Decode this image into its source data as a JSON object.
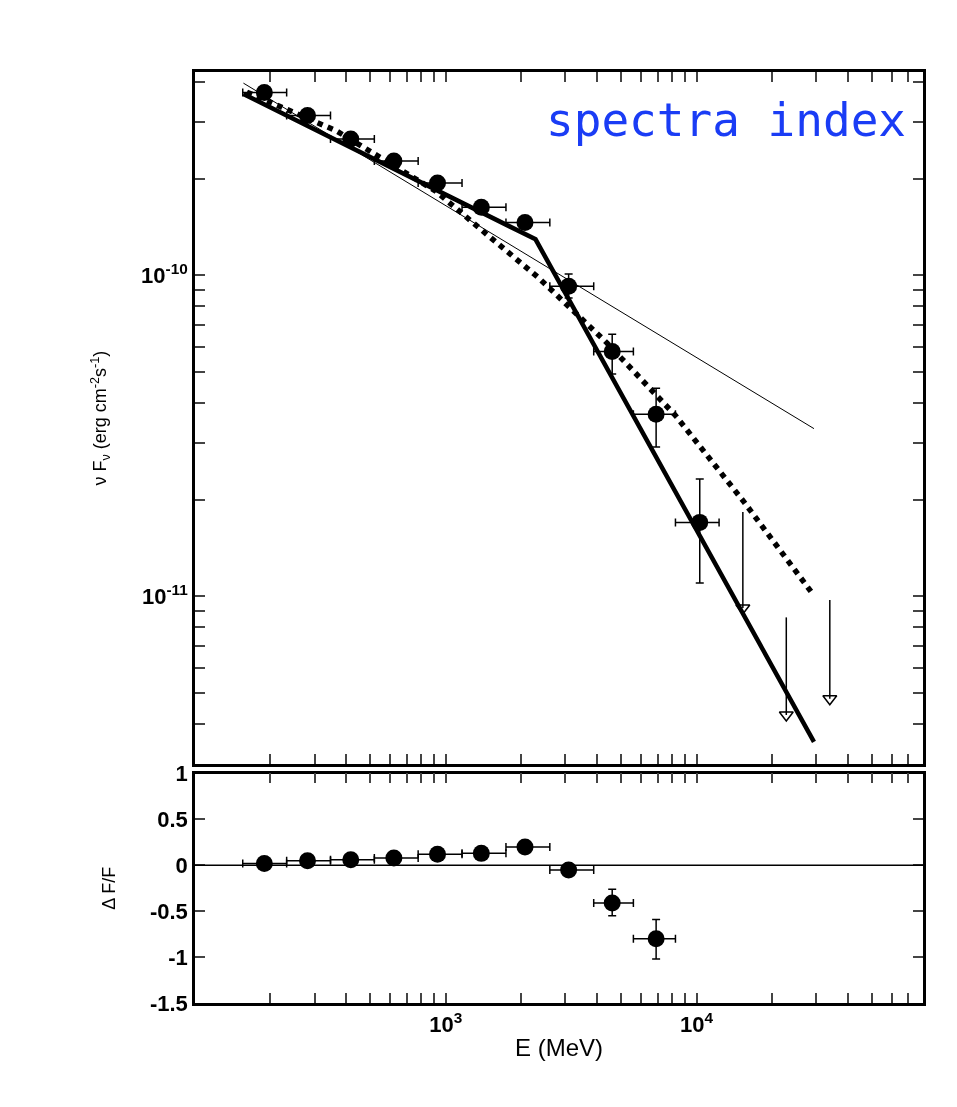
{
  "chart_data": [
    {
      "type": "scatter",
      "ylabel": "ν F$_{ν}$ (erg cm$^{-2}$s$^{-1}$)",
      "annotations": [
        "spectra index"
      ],
      "log": "xy",
      "tick_labels": "y",
      "xlim": [
        100,
        80000
      ],
      "ylim": [
        3e-12,
        4.3e-10
      ],
      "xticks": [
        {
          "value": 100,
          "label": null
        },
        {
          "value": 200,
          "label": null
        },
        {
          "value": 300,
          "label": null
        },
        {
          "value": 400,
          "label": null
        },
        {
          "value": 500,
          "label": null
        },
        {
          "value": 600,
          "label": null
        },
        {
          "value": 700,
          "label": null
        },
        {
          "value": 800,
          "label": null
        },
        {
          "value": 900,
          "label": null
        },
        {
          "value": 1000,
          "label": null
        },
        {
          "value": 2000,
          "label": null
        },
        {
          "value": 3000,
          "label": null
        },
        {
          "value": 4000,
          "label": null
        },
        {
          "value": 5000,
          "label": null
        },
        {
          "value": 6000,
          "label": null
        },
        {
          "value": 7000,
          "label": null
        },
        {
          "value": 8000,
          "label": null
        },
        {
          "value": 9000,
          "label": null
        },
        {
          "value": 10000,
          "label": null
        },
        {
          "value": 20000,
          "label": null
        },
        {
          "value": 30000,
          "label": null
        },
        {
          "value": 40000,
          "label": null
        },
        {
          "value": 50000,
          "label": null
        },
        {
          "value": 60000,
          "label": null
        },
        {
          "value": 70000,
          "label": null
        }
      ],
      "yticks": [
        {
          "value": 4e-10,
          "label": null
        },
        {
          "value": 3e-10,
          "label": null
        },
        {
          "value": 2e-10,
          "label": null
        },
        {
          "value": 1e-10,
          "label": "10$^{-10}$"
        },
        {
          "value": 9e-11,
          "label": null
        },
        {
          "value": 8e-11,
          "label": null
        },
        {
          "value": 7e-11,
          "label": null
        },
        {
          "value": 6e-11,
          "label": null
        },
        {
          "value": 5e-11,
          "label": null
        },
        {
          "value": 4e-11,
          "label": null
        },
        {
          "value": 3e-11,
          "label": null
        },
        {
          "value": 2e-11,
          "label": null
        },
        {
          "value": 1e-11,
          "label": "10$^{-11}$"
        },
        {
          "value": 9e-12,
          "label": null
        },
        {
          "value": 8e-12,
          "label": null
        },
        {
          "value": 7e-12,
          "label": null
        },
        {
          "value": 6e-12,
          "label": null
        },
        {
          "value": 5e-12,
          "label": null
        },
        {
          "value": 4e-12,
          "label": null
        },
        {
          "value": 3e-12,
          "label": null
        }
      ],
      "series": [
        {
          "color": "#000000",
          "marker": "circle",
          "x": [
            189,
            281,
            418,
            621,
            927,
            1386,
            2070,
            3090,
            4610,
            6900,
            10300
          ],
          "values": [
            3.71e-10,
            3.15e-10,
            2.66e-10,
            2.27e-10,
            1.94e-10,
            1.63e-10,
            1.46e-10,
            9.25e-11,
            5.79e-11,
            3.69e-11,
            1.7e-11
          ],
          "errors": [
            null,
            null,
            null,
            null,
            null,
            null,
            null,
            [
              8.5e-11,
              1.01e-10
            ],
            [
              4.93e-11,
              6.55e-11
            ],
            [
              2.92e-11,
              4.45e-11
            ],
            [
              1.1e-11,
              2.32e-11
            ]
          ],
          "xerrors": [
            [
              155,
              232
            ],
            [
              232,
              347
            ],
            [
              347,
              519
            ],
            [
              519,
              776
            ],
            [
              776,
              1161
            ],
            [
              1161,
              1738
            ],
            [
              1738,
              2600
            ],
            [
              2600,
              3890
            ],
            [
              3890,
              5600
            ],
            [
              5600,
              8240
            ],
            [
              8240,
              12300
            ]
          ]
        },
        {
          "type": "line",
          "color": "#000000",
          "line_style": "solid",
          "x": [
            156,
            29400
          ],
          "values": [
            3.97e-10,
            3.33e-11
          ]
        },
        {
          "type": "line",
          "color": "#000000",
          "line_style": "solid",
          "x": [
            156,
            2280,
            29400
          ],
          "values": [
            3.67e-10,
            1.295e-10,
            3.52e-12
          ]
        },
        {
          "type": "line",
          "color": "#000000",
          "line_style": "dotted",
          "x": [
            161,
            366,
            912,
            1460,
            2340,
            4400,
            8240,
            15450,
            29000
          ],
          "values": [
            3.72e-10,
            2.82e-10,
            1.83e-10,
            1.34e-10,
            9.84e-11,
            6.15e-11,
            3.66e-11,
            1.97e-11,
            1.02e-11
          ]
        },
        {
          "color": "#000000",
          "marker": "triangle",
          "x": [
            15300,
            22800,
            34000
          ],
          "values": [
            9.2e-12,
            4.27e-12,
            4.8e-12
          ],
          "errors": [
            [
              9.2e-12,
              1.83e-11
            ],
            [
              4.27e-12,
              8.6e-12
            ],
            [
              4.8e-12,
              9.75e-12
            ]
          ]
        }
      ]
    },
    {
      "type": "scatter",
      "xlabel": "E (MeV)",
      "ylabel": "Δ F/F",
      "log": "x",
      "xlim": [
        100,
        80000
      ],
      "ylim": [
        -1.5,
        1
      ],
      "xticks": [
        {
          "value": 100,
          "label": null
        },
        {
          "value": 200,
          "label": null
        },
        {
          "value": 300,
          "label": null
        },
        {
          "value": 400,
          "label": null
        },
        {
          "value": 500,
          "label": null
        },
        {
          "value": 600,
          "label": null
        },
        {
          "value": 700,
          "label": null
        },
        {
          "value": 800,
          "label": null
        },
        {
          "value": 900,
          "label": null
        },
        {
          "value": 1000,
          "label": "10$^{3}$"
        },
        {
          "value": 2000,
          "label": null
        },
        {
          "value": 3000,
          "label": null
        },
        {
          "value": 4000,
          "label": null
        },
        {
          "value": 5000,
          "label": null
        },
        {
          "value": 6000,
          "label": null
        },
        {
          "value": 7000,
          "label": null
        },
        {
          "value": 8000,
          "label": null
        },
        {
          "value": 9000,
          "label": null
        },
        {
          "value": 10000,
          "label": "10$^{4}$"
        },
        {
          "value": 20000,
          "label": null
        },
        {
          "value": 30000,
          "label": null
        },
        {
          "value": 40000,
          "label": null
        },
        {
          "value": 50000,
          "label": null
        },
        {
          "value": 60000,
          "label": null
        },
        {
          "value": 70000,
          "label": null
        }
      ],
      "yticks": [
        -1.5,
        -1,
        -0.5,
        0,
        0.5,
        1
      ],
      "ref_lines": [
        {
          "axis": "y",
          "value": 0,
          "color": "#000000"
        }
      ],
      "series": [
        {
          "color": "#000000",
          "marker": "circle",
          "x": [
            189,
            281,
            418,
            621,
            927,
            1386,
            2070,
            3090,
            4610,
            6900
          ],
          "values": [
            0.02,
            0.05,
            0.06,
            0.08,
            0.12,
            0.13,
            0.2,
            -0.05,
            -0.41,
            -0.8
          ],
          "errors": [
            null,
            null,
            null,
            null,
            null,
            null,
            null,
            null,
            [
              -0.55,
              -0.26
            ],
            [
              -1.02,
              -0.59
            ]
          ],
          "xerrors": [
            [
              155,
              232
            ],
            [
              232,
              347
            ],
            [
              347,
              519
            ],
            [
              519,
              776
            ],
            [
              776,
              1161
            ],
            [
              1161,
              1738
            ],
            [
              1738,
              2600
            ],
            [
              2600,
              3890
            ],
            [
              3890,
              5600
            ],
            [
              5600,
              8240
            ]
          ]
        }
      ]
    }
  ]
}
